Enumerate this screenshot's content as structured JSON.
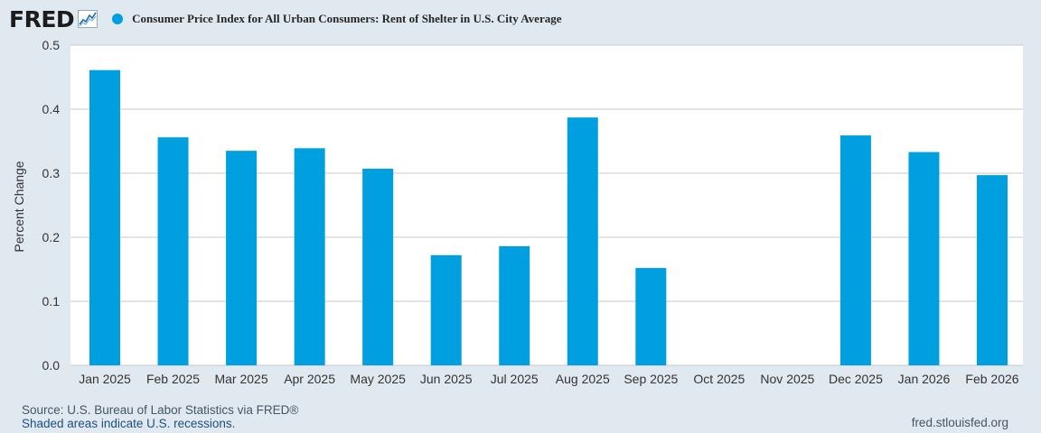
{
  "brand": {
    "logo_text": "FRED"
  },
  "chart_data": {
    "type": "bar",
    "title": "Consumer Price Index for All Urban Consumers: Rent of Shelter in U.S. City Average",
    "xlabel": "",
    "ylabel": "Percent Change",
    "ylim": [
      0,
      0.5
    ],
    "yticks": [
      "0.0",
      "0.1",
      "0.2",
      "0.3",
      "0.4",
      "0.5"
    ],
    "grid": true,
    "categories": [
      "Jan 2025",
      "Feb 2025",
      "Mar 2025",
      "Apr 2025",
      "May 2025",
      "Jun 2025",
      "Jul 2025",
      "Aug 2025",
      "Sep 2025",
      "Oct 2025",
      "Nov 2025",
      "Dec 2025",
      "Jan 2026",
      "Feb 2026"
    ],
    "values": [
      0.461,
      0.356,
      0.335,
      0.339,
      0.307,
      0.172,
      0.186,
      0.387,
      0.152,
      null,
      null,
      0.359,
      0.333,
      0.297
    ],
    "bar_color": "#009fe0"
  },
  "footer": {
    "source": "Source: U.S. Bureau of Labor Statistics via FRED®",
    "recessions": "Shaded areas indicate U.S. recessions.",
    "url": "fred.stlouisfed.org"
  },
  "colors": {
    "background": "#e1e9f0",
    "plot_bg": "#ffffff",
    "grid": "#c8c8c8",
    "bar": "#009fe0"
  }
}
